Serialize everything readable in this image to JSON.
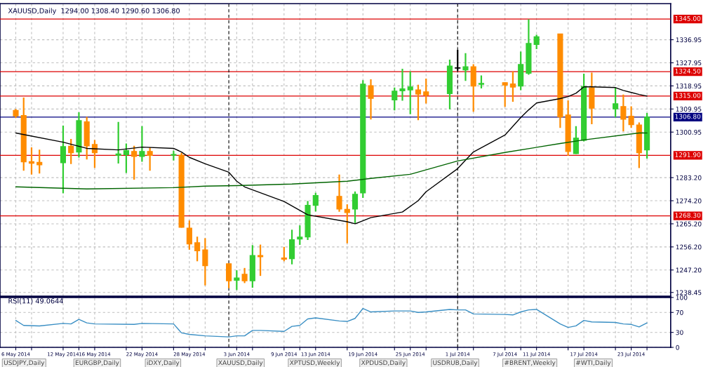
{
  "chart_data": [
    {
      "type": "candlestick",
      "title": "XAUUSD,Daily  1294.00 1308.40 1290.60 1306.80",
      "x": [
        "2014-05-06",
        "2014-05-07",
        "2014-05-08",
        "2014-05-09",
        "2014-05-12",
        "2014-05-13",
        "2014-05-14",
        "2014-05-15",
        "2014-05-16",
        "2014-05-19",
        "2014-05-20",
        "2014-05-21",
        "2014-05-22",
        "2014-05-23",
        "2014-05-26",
        "2014-05-27",
        "2014-05-28",
        "2014-05-29",
        "2014-05-30",
        "2014-06-02",
        "2014-06-03",
        "2014-06-04",
        "2014-06-05",
        "2014-06-06",
        "2014-06-09",
        "2014-06-10",
        "2014-06-11",
        "2014-06-12",
        "2014-06-13",
        "2014-06-16",
        "2014-06-17",
        "2014-06-18",
        "2014-06-19",
        "2014-06-20",
        "2014-06-23",
        "2014-06-24",
        "2014-06-25",
        "2014-06-26",
        "2014-06-27",
        "2014-06-30",
        "2014-07-01",
        "2014-07-02",
        "2014-07-03",
        "2014-07-04",
        "2014-07-07",
        "2014-07-08",
        "2014-07-09",
        "2014-07-10",
        "2014-07-11",
        "2014-07-14",
        "2014-07-15",
        "2014-07-16",
        "2014-07-17",
        "2014-07-18",
        "2014-07-21",
        "2014-07-22",
        "2014-07-23",
        "2014-07-24",
        "2014-07-25"
      ],
      "ohlc": [
        [
          1309.4,
          1310.0,
          1306.5,
          1307.3
        ],
        [
          1307.4,
          1314.4,
          1285.9,
          1289.4
        ],
        [
          1289.4,
          1295.0,
          1284.4,
          1288.8
        ],
        [
          1289.1,
          1294.1,
          1284.8,
          1288.2
        ],
        [
          1289.0,
          1303.5,
          1277.1,
          1295.3
        ],
        [
          1295.4,
          1298.3,
          1288.5,
          1292.9
        ],
        [
          1293.2,
          1308.7,
          1291.0,
          1305.4
        ],
        [
          1304.9,
          1306.9,
          1290.3,
          1295.6
        ],
        [
          1296.1,
          1297.9,
          1287.0,
          1292.9
        ],
        [
          1292.0,
          1304.9,
          1288.7,
          1292.4
        ],
        [
          1292.2,
          1296.5,
          1285.0,
          1293.7
        ],
        [
          1293.4,
          1295.6,
          1282.4,
          1291.5
        ],
        [
          1291.5,
          1303.3,
          1289.4,
          1293.4
        ],
        [
          1293.4,
          1295.0,
          1285.9,
          1291.9
        ],
        [
          1292.0,
          1293.7,
          1289.9,
          1292.2
        ],
        [
          1291.9,
          1292.9,
          1263.7,
          1263.9
        ],
        [
          1263.5,
          1266.5,
          1255.1,
          1257.4
        ],
        [
          1257.8,
          1260.2,
          1250.6,
          1254.7
        ],
        [
          1255.0,
          1259.6,
          1241.2,
          1248.9
        ],
        [
          1249.6,
          1249.8,
          1240.1,
          1243.0
        ],
        [
          1243.2,
          1247.1,
          1239.4,
          1244.1
        ],
        [
          1245.5,
          1248.0,
          1242.1,
          1243.0
        ],
        [
          1243.0,
          1256.9,
          1240.3,
          1252.8
        ],
        [
          1252.8,
          1257.1,
          1244.9,
          1252.4
        ],
        [
          1251.9,
          1256.2,
          1250.6,
          1251.4
        ],
        [
          1251.6,
          1262.9,
          1249.4,
          1259.0
        ],
        [
          1259.3,
          1264.6,
          1257.0,
          1260.0
        ],
        [
          1260.1,
          1274.1,
          1258.9,
          1272.4
        ],
        [
          1272.4,
          1277.3,
          1270.0,
          1276.2
        ],
        [
          1275.9,
          1284.4,
          1269.9,
          1271.0
        ],
        [
          1270.8,
          1272.8,
          1257.6,
          1269.6
        ],
        [
          1271.0,
          1277.8,
          1265.5,
          1276.7
        ],
        [
          1277.3,
          1321.2,
          1275.3,
          1319.6
        ],
        [
          1319.0,
          1321.5,
          1305.9,
          1314.1
        ],
        [
          1313.5,
          1318.3,
          1309.4,
          1316.9
        ],
        [
          1317.1,
          1325.6,
          1313.2,
          1317.8
        ],
        [
          1317.4,
          1324.6,
          1307.9,
          1318.5
        ],
        [
          1317.4,
          1319.4,
          1305.6,
          1315.8
        ],
        [
          1316.6,
          1321.8,
          1312.1,
          1315.4
        ],
        [
          1316.0,
          1329.2,
          1309.8,
          1326.7
        ],
        [
          1325.9,
          1333.0,
          1324.9,
          1326.0
        ],
        [
          1325.2,
          1331.7,
          1320.9,
          1326.4
        ],
        [
          1326.4,
          1327.4,
          1308.9,
          1318.9
        ],
        [
          1319.6,
          1323.0,
          1318.0,
          1319.9
        ],
        [
          1320.2,
          1320.3,
          1310.8,
          1319.3
        ],
        [
          1319.7,
          1324.6,
          1312.8,
          1318.5
        ],
        [
          1318.9,
          1332.3,
          1317.3,
          1327.3
        ],
        [
          1323.9,
          1344.9,
          1323.3,
          1335.5
        ],
        [
          1335.1,
          1338.9,
          1333.3,
          1338.1
        ],
        [
          1339.2,
          1339.3,
          1302.6,
          1306.9
        ],
        [
          1307.6,
          1313.3,
          1291.7,
          1293.4
        ],
        [
          1292.6,
          1303.3,
          1292.4,
          1298.6
        ],
        [
          1297.8,
          1323.7,
          1297.3,
          1318.7
        ],
        [
          1318.2,
          1324.1,
          1304.0,
          1310.3
        ],
        [
          1310.0,
          1318.3,
          1306.7,
          1312.0
        ],
        [
          1310.9,
          1315.6,
          1301.2,
          1306.0
        ],
        [
          1307.1,
          1311.0,
          1302.6,
          1303.9
        ],
        [
          1303.7,
          1304.7,
          1286.9,
          1292.9
        ],
        [
          1294.0,
          1308.4,
          1290.6,
          1306.8
        ]
      ],
      "colors": [
        "#ff8c00",
        "#ff8c00",
        "#ff8c00",
        "#ff8c00",
        "#32cd32",
        "#ff8c00",
        "#32cd32",
        "#ff8c00",
        "#ff8c00",
        "#32cd32",
        "#32cd32",
        "#ff8c00",
        "#32cd32",
        "#ff8c00",
        "#32cd32",
        "#ff8c00",
        "#ff8c00",
        "#ff8c00",
        "#ff8c00",
        "#ff8c00",
        "#32cd32",
        "#ff8c00",
        "#32cd32",
        "#ff8c00",
        "#ff8c00",
        "#32cd32",
        "#32cd32",
        "#32cd32",
        "#32cd32",
        "#ff8c00",
        "#ff8c00",
        "#32cd32",
        "#32cd32",
        "#ff8c00",
        "#32cd32",
        "#32cd32",
        "#32cd32",
        "#ff8c00",
        "#ff8c00",
        "#32cd32",
        "#000000",
        "#32cd32",
        "#ff8c00",
        "#32cd32",
        "#ff8c00",
        "#ff8c00",
        "#32cd32",
        "#32cd32",
        "#32cd32",
        "#ff8c00",
        "#ff8c00",
        "#32cd32",
        "#32cd32",
        "#ff8c00",
        "#32cd32",
        "#ff8c00",
        "#ff8c00",
        "#ff8c00",
        "#32cd32"
      ],
      "series": [
        {
          "type": "line",
          "color": "#000000",
          "x": [
            "2014-05-06",
            "2014-05-07",
            "2014-05-12",
            "2014-05-15",
            "2014-05-19",
            "2014-05-22",
            "2014-05-26",
            "2014-05-27",
            "2014-05-28",
            "2014-05-30",
            "2014-06-02",
            "2014-06-03",
            "2014-06-04",
            "2014-06-09",
            "2014-06-12",
            "2014-06-17",
            "2014-06-18",
            "2014-06-20",
            "2014-06-24",
            "2014-06-26",
            "2014-06-27",
            "2014-07-01",
            "2014-07-02",
            "2014-07-03",
            "2014-07-07",
            "2014-07-09",
            "2014-07-10",
            "2014-07-11",
            "2014-07-14",
            "2014-07-15",
            "2014-07-16",
            "2014-07-17",
            "2014-07-18",
            "2014-07-21",
            "2014-07-22",
            "2014-07-23",
            "2014-07-24",
            "2014-07-25"
          ],
          "values": [
            1300.6,
            1300.0,
            1297.0,
            1294.6,
            1294.0,
            1295.1,
            1294.6,
            1293.2,
            1291.1,
            1288.6,
            1285.3,
            1281.8,
            1279.6,
            1273.9,
            1268.7,
            1266.0,
            1265.2,
            1267.6,
            1269.8,
            1274.2,
            1277.7,
            1286.7,
            1290.0,
            1293.2,
            1299.8,
            1306.6,
            1309.6,
            1312.3,
            1314.0,
            1314.8,
            1316.1,
            1318.6,
            1318.6,
            1318.3,
            1317.2,
            1316.4,
            1315.6,
            1315.0
          ]
        },
        {
          "type": "line",
          "color": "#006400",
          "x": [
            "2014-05-06",
            "2014-05-15",
            "2014-05-26",
            "2014-05-30",
            "2014-06-03",
            "2014-06-10",
            "2014-06-17",
            "2014-06-20",
            "2014-06-25",
            "2014-07-01",
            "2014-07-07",
            "2014-07-14",
            "2014-07-17",
            "2014-07-24",
            "2014-07-25"
          ],
          "values": [
            1279.6,
            1278.8,
            1279.3,
            1279.9,
            1280.1,
            1280.7,
            1281.8,
            1282.9,
            1284.5,
            1289.7,
            1293.0,
            1296.5,
            1297.9,
            1300.6,
            1300.6
          ]
        }
      ],
      "xlim": [
        "2014-05-04",
        "2014-07-28"
      ],
      "ylim": [
        1237,
        1351
      ],
      "yticks": [
        1336.95,
        1327.95,
        1318.95,
        1309.95,
        1300.95,
        {
          "value": 1283.2,
          "label": "1283.20"
        },
        {
          "value": 1274.2,
          "label": "1274.20"
        },
        {
          "value": 1265.2,
          "label": "1265.20"
        },
        {
          "value": 1256.2,
          "label": "1256.20"
        },
        {
          "value": 1247.2,
          "label": "1247.20"
        },
        1238.45
      ],
      "xticks": [
        {
          "value": "2014-05-06",
          "label": null
        },
        {
          "value": "2014-05-08",
          "label": null
        },
        {
          "value": "2014-05-12",
          "label": null
        },
        {
          "value": "2014-05-14",
          "label": null
        },
        {
          "value": "2014-05-16",
          "label": null
        },
        {
          "value": "2014-05-20",
          "label": null
        },
        {
          "value": "2014-05-22",
          "label": null
        },
        {
          "value": "2014-05-26",
          "label": null
        },
        {
          "value": "2014-05-28",
          "label": null
        },
        {
          "value": "2014-05-30",
          "label": null
        },
        {
          "value": "2014-06-03",
          "label": null
        },
        {
          "value": "2014-06-05",
          "label": null
        },
        {
          "value": "2014-06-09",
          "label": null
        },
        {
          "value": "2014-06-11",
          "label": null
        },
        {
          "value": "2014-06-13",
          "label": null
        },
        {
          "value": "2014-06-17",
          "label": null
        },
        {
          "value": "2014-06-19",
          "label": null
        },
        {
          "value": "2014-06-23",
          "label": null
        },
        {
          "value": "2014-06-25",
          "label": null
        },
        {
          "value": "2014-06-27",
          "label": null
        },
        {
          "value": "2014-07-01",
          "label": null
        },
        {
          "value": "2014-07-03",
          "label": null
        },
        {
          "value": "2014-07-07",
          "label": null
        },
        {
          "value": "2014-07-09",
          "label": null
        },
        {
          "value": "2014-07-11",
          "label": null
        },
        {
          "value": "2014-07-15",
          "label": null
        },
        {
          "value": "2014-07-17",
          "label": null
        },
        {
          "value": "2014-07-21",
          "label": null
        },
        {
          "value": "2014-07-23",
          "label": null
        },
        {
          "value": "2014-07-25",
          "label": null
        }
      ],
      "tick_labels": "y",
      "grid": true,
      "ref_lines": [
        {
          "axis": "y",
          "value": 1345.0,
          "label": "1345.00",
          "color": "#dd0000",
          "line_style": "solid"
        },
        {
          "axis": "y",
          "value": 1324.5,
          "label": "1324.50",
          "color": "#dd0000",
          "line_style": "solid"
        },
        {
          "axis": "y",
          "value": 1315.0,
          "label": "1315.00",
          "color": "#dd0000",
          "line_style": "solid"
        },
        {
          "axis": "y",
          "value": 1306.8,
          "label": "1306.80",
          "color": "#000080",
          "line_style": "solid"
        },
        {
          "axis": "y",
          "value": 1291.9,
          "label": "1291.90",
          "color": "#dd0000",
          "line_style": "solid"
        },
        {
          "axis": "y",
          "value": 1268.3,
          "label": "1268.30",
          "color": "#dd0000",
          "line_style": "solid"
        },
        {
          "axis": "x",
          "value": "2014-06-02",
          "color": "#000000",
          "line_style": "dashed"
        },
        {
          "axis": "x",
          "value": "2014-07-01",
          "color": "#000000",
          "line_style": "dashed"
        }
      ]
    },
    {
      "type": "line",
      "title": "RSI(11) 49.0644",
      "x": [
        "2014-05-06",
        "2014-05-07",
        "2014-05-09",
        "2014-05-12",
        "2014-05-13",
        "2014-05-14",
        "2014-05-15",
        "2014-05-16",
        "2014-05-21",
        "2014-05-22",
        "2014-05-26",
        "2014-05-27",
        "2014-05-28",
        "2014-05-30",
        "2014-06-02",
        "2014-06-03",
        "2014-06-04",
        "2014-06-05",
        "2014-06-06",
        "2014-06-09",
        "2014-06-10",
        "2014-06-11",
        "2014-06-12",
        "2014-06-13",
        "2014-06-16",
        "2014-06-17",
        "2014-06-18",
        "2014-06-19",
        "2014-06-20",
        "2014-06-23",
        "2014-06-25",
        "2014-06-26",
        "2014-06-27",
        "2014-06-30",
        "2014-07-01",
        "2014-07-02",
        "2014-07-03",
        "2014-07-07",
        "2014-07-08",
        "2014-07-09",
        "2014-07-10",
        "2014-07-11",
        "2014-07-14",
        "2014-07-15",
        "2014-07-16",
        "2014-07-17",
        "2014-07-18",
        "2014-07-21",
        "2014-07-22",
        "2014-07-23",
        "2014-07-24",
        "2014-07-25"
      ],
      "series": [
        {
          "color": "#3a8fc4",
          "values": [
            54,
            44,
            43,
            48,
            47,
            56,
            49,
            47,
            46,
            48,
            47,
            29,
            26,
            23,
            21,
            23,
            23,
            34,
            34,
            32,
            42,
            44,
            57,
            59,
            53,
            52,
            58,
            78,
            71,
            73,
            73,
            70,
            71,
            76,
            75,
            75,
            67,
            66,
            65,
            71,
            75,
            76,
            47,
            40,
            43,
            54,
            51,
            50,
            47,
            46,
            41,
            49
          ]
        }
      ],
      "xlim": [
        "2014-05-04",
        "2014-07-28"
      ],
      "ylim": [
        0,
        100
      ],
      "yticks": [
        0,
        30,
        70,
        100
      ],
      "xticks": [
        {
          "value": "2014-05-06",
          "label": "6 May 2014"
        },
        {
          "value": "2014-05-08",
          "label": null
        },
        {
          "value": "2014-05-12",
          "label": "12 May 2014"
        },
        {
          "value": "2014-05-14",
          "label": null
        },
        {
          "value": "2014-05-16",
          "label": "16 May 2014"
        },
        {
          "value": "2014-05-20",
          "label": null
        },
        {
          "value": "2014-05-22",
          "label": "22 May 2014"
        },
        {
          "value": "2014-05-26",
          "label": null
        },
        {
          "value": "2014-05-28",
          "label": "28 May 2014"
        },
        {
          "value": "2014-05-30",
          "label": null
        },
        {
          "value": "2014-06-03",
          "label": "3 Jun 2014"
        },
        {
          "value": "2014-06-05",
          "label": null
        },
        {
          "value": "2014-06-09",
          "label": "9 Jun 2014"
        },
        {
          "value": "2014-06-11",
          "label": null
        },
        {
          "value": "2014-06-13",
          "label": "13 Jun 2014"
        },
        {
          "value": "2014-06-17",
          "label": null
        },
        {
          "value": "2014-06-19",
          "label": "19 Jun 2014"
        },
        {
          "value": "2014-06-23",
          "label": null
        },
        {
          "value": "2014-06-25",
          "label": "25 Jun 2014"
        },
        {
          "value": "2014-06-27",
          "label": null
        },
        {
          "value": "2014-07-01",
          "label": "1 Jul 2014"
        },
        {
          "value": "2014-07-03",
          "label": null
        },
        {
          "value": "2014-07-07",
          "label": "7 Jul 2014"
        },
        {
          "value": "2014-07-09",
          "label": null
        },
        {
          "value": "2014-07-11",
          "label": "11 Jul 2014"
        },
        {
          "value": "2014-07-15",
          "label": null
        },
        {
          "value": "2014-07-17",
          "label": "17 Jul 2014"
        },
        {
          "value": "2014-07-21",
          "label": null
        },
        {
          "value": "2014-07-23",
          "label": "23 Jul 2014"
        },
        {
          "value": "2014-07-25",
          "label": null
        }
      ],
      "grid": true,
      "ref_lines": [
        {
          "axis": "x",
          "value": "2014-06-02",
          "color": "#000000",
          "line_style": "dashed"
        },
        {
          "axis": "x",
          "value": "2014-07-01",
          "color": "#000000",
          "line_style": "dashed"
        }
      ],
      "annotations": [
        "USDJPY,Daily",
        "EURGBP,Daily",
        "iDXY,Daily",
        "XAUUSD,Daily",
        "XPTUSD,Weekly",
        "XPDUSD,Daily",
        "USDRUB,Daily",
        "#BRENT,Weekly",
        "#WTI,Daily"
      ]
    }
  ]
}
